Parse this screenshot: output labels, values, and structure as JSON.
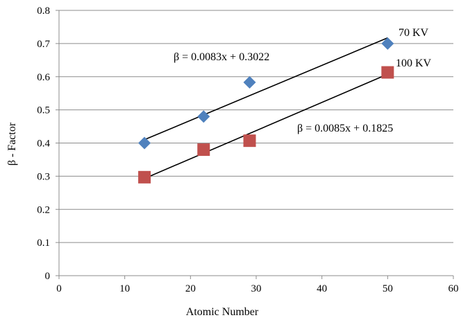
{
  "chart_data": {
    "type": "scatter",
    "xlabel": "Atomic Number",
    "ylabel": "β - Factor",
    "xlim": [
      0,
      60
    ],
    "ylim": [
      0,
      0.8
    ],
    "x_ticks": [
      0,
      10,
      20,
      30,
      40,
      50,
      60
    ],
    "y_ticks": [
      0,
      0.1,
      0.2,
      0.3,
      0.4,
      0.5,
      0.6,
      0.7,
      0.8
    ],
    "x_tick_labels": [
      "0",
      "10",
      "20",
      "30",
      "40",
      "50",
      "60"
    ],
    "y_tick_labels": [
      "0",
      "0.1",
      "0.2",
      "0.3",
      "0.4",
      "0.5",
      "0.6",
      "0.7",
      "0.8"
    ],
    "grid": "horizontal",
    "series": [
      {
        "name": "70 KV",
        "marker": "diamond",
        "color": "#4f81bd",
        "x": [
          13,
          22,
          29,
          50
        ],
        "y": [
          0.4,
          0.48,
          0.583,
          0.7
        ],
        "trendline": {
          "slope": 0.0083,
          "intercept": 0.3022,
          "x_range": [
            13,
            50
          ],
          "equation": "β = 0.0083x + 0.3022"
        }
      },
      {
        "name": "100 KV",
        "marker": "square",
        "color": "#c0504d",
        "x": [
          13,
          22,
          29,
          50
        ],
        "y": [
          0.297,
          0.38,
          0.407,
          0.613
        ],
        "trendline": {
          "slope": 0.0085,
          "intercept": 0.1825,
          "x_range": [
            13,
            50
          ],
          "equation": "β = 0.0085x + 0.1825"
        }
      }
    ]
  }
}
